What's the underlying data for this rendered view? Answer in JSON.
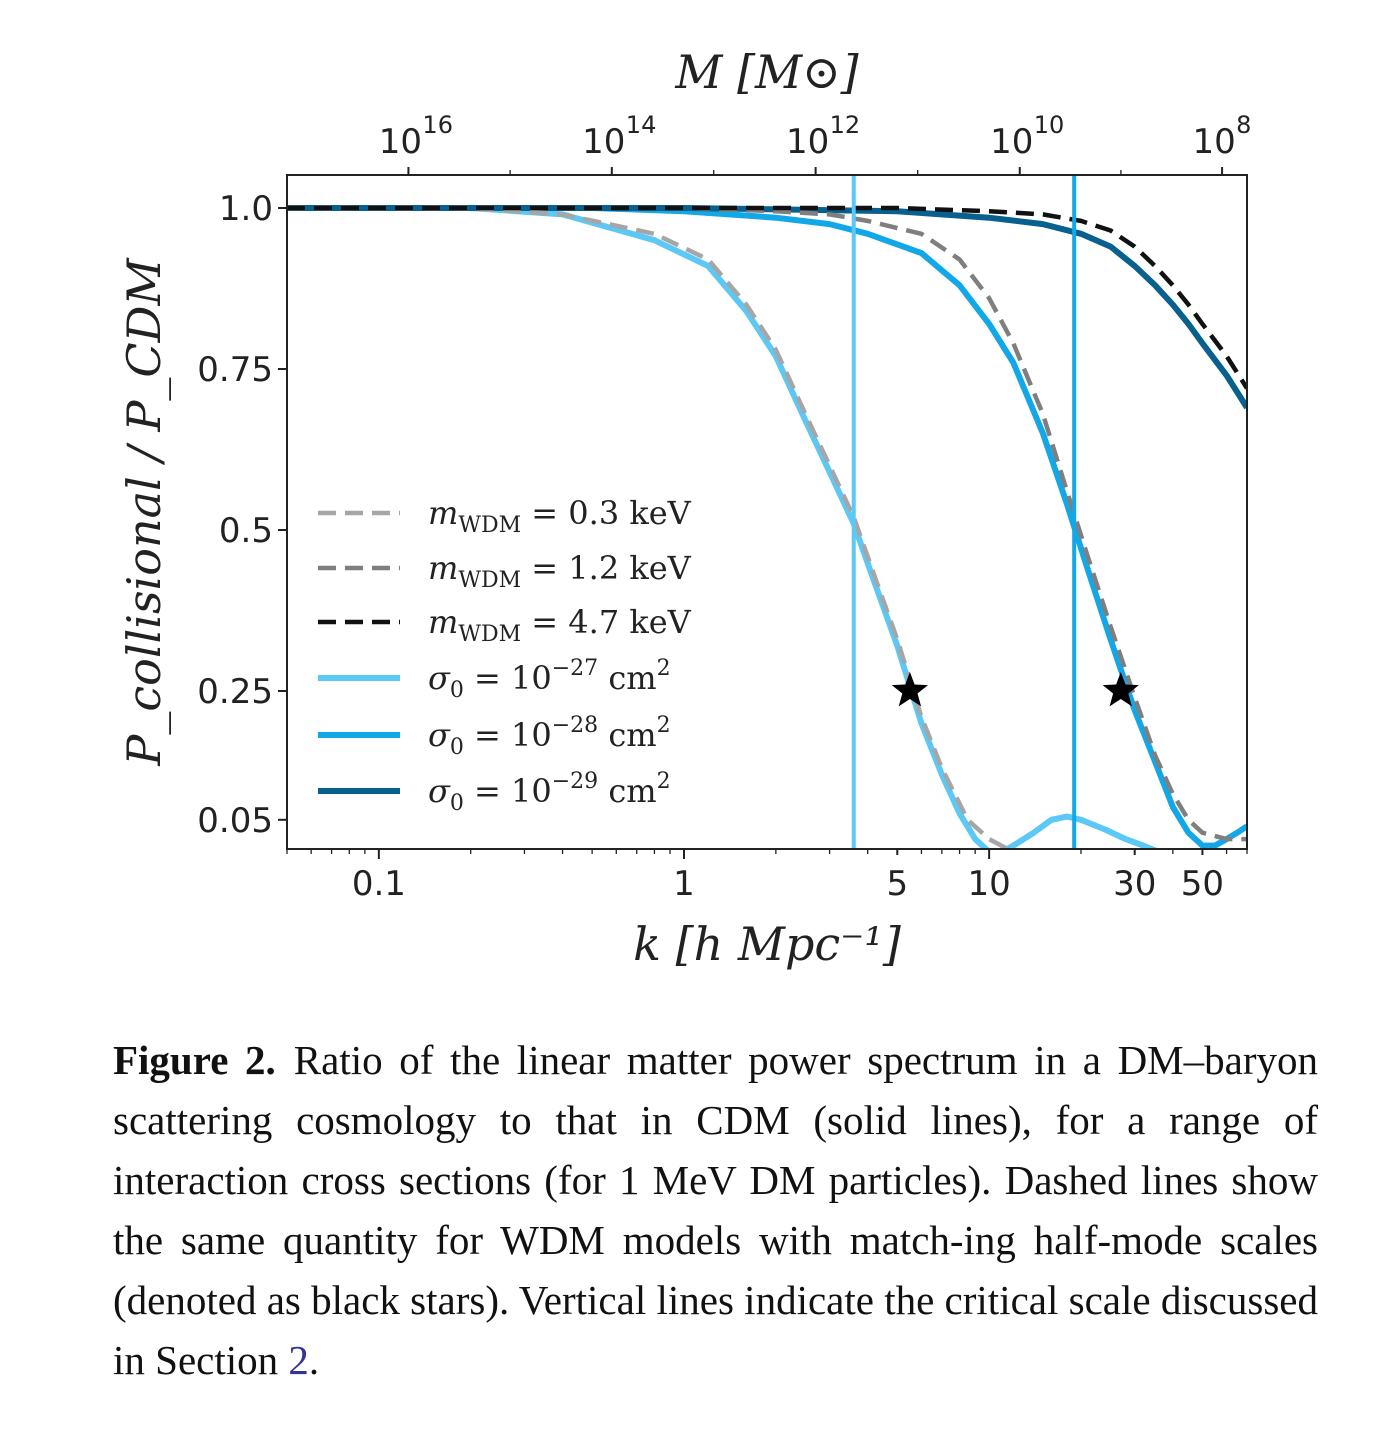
{
  "chart_data": {
    "type": "line",
    "xlabel": "k [h Mpc⁻¹]",
    "ylabel": "P_collisional / P_CDM",
    "xscale": "log",
    "xlim": [
      0.05,
      70
    ],
    "ylim": [
      0.0,
      1.05
    ],
    "x_ticks": [
      0.1,
      1,
      5,
      10,
      30,
      50
    ],
    "x_tick_labels": [
      "0.1",
      "1",
      "5",
      "10",
      "30",
      "50"
    ],
    "y_ticks": [
      1.0,
      0.75,
      0.5,
      0.25,
      0.05
    ],
    "y_tick_labels": [
      "1.0",
      "0.75",
      "0.5",
      "0.25",
      "0.05"
    ],
    "top_axis": {
      "label": "M [M⊙]",
      "ticks": [
        "10^16",
        "10^14",
        "10^12",
        "10^10",
        "10^8"
      ],
      "tick_positions_k": [
        0.125,
        0.58,
        2.7,
        12.6,
        58
      ]
    },
    "legend_placement": "center-left",
    "grid": false,
    "vertical_lines": [
      {
        "k": 3.6,
        "color": "#5bc8f5"
      },
      {
        "k": 19.0,
        "color": "#12a8e8"
      }
    ],
    "stars": [
      {
        "k": 5.5,
        "y": 0.25
      },
      {
        "k": 27.0,
        "y": 0.25
      }
    ],
    "series": [
      {
        "name": "m_WDM = 0.3 keV",
        "style": "dashed",
        "color": "#a6a6a6",
        "x": [
          0.05,
          0.1,
          0.2,
          0.4,
          0.8,
          1.2,
          1.6,
          2.0,
          2.5,
          3.0,
          3.6,
          4.2,
          5.0,
          6.0,
          7.0,
          8.5,
          10,
          12,
          15,
          20,
          30,
          50,
          70
        ],
        "y": [
          1.0,
          1.0,
          1.0,
          0.99,
          0.96,
          0.92,
          0.85,
          0.78,
          0.68,
          0.6,
          0.52,
          0.43,
          0.33,
          0.21,
          0.13,
          0.05,
          0.02,
          0.0,
          0.0,
          0.0,
          0.0,
          0.0,
          0.0
        ]
      },
      {
        "name": "m_WDM = 1.2 keV",
        "style": "dashed",
        "color": "#7f7f7f",
        "x": [
          0.05,
          0.5,
          1,
          2,
          3,
          4,
          6,
          8,
          10,
          12,
          15,
          18,
          21,
          25,
          30,
          35,
          40,
          45,
          50,
          60,
          70
        ],
        "y": [
          1.0,
          1.0,
          1.0,
          0.995,
          0.99,
          0.98,
          0.96,
          0.92,
          0.86,
          0.79,
          0.68,
          0.56,
          0.46,
          0.35,
          0.24,
          0.15,
          0.09,
          0.05,
          0.03,
          0.02,
          0.02
        ]
      },
      {
        "name": "m_WDM = 4.7 keV",
        "style": "dashed",
        "color": "#111111",
        "x": [
          0.05,
          1,
          5,
          10,
          15,
          20,
          25,
          30,
          35,
          40,
          45,
          50,
          60,
          70
        ],
        "y": [
          1.0,
          1.0,
          1.0,
          0.995,
          0.99,
          0.98,
          0.965,
          0.94,
          0.91,
          0.88,
          0.85,
          0.82,
          0.77,
          0.72
        ]
      },
      {
        "name": "σ₀ = 10⁻²⁷ cm²",
        "style": "solid",
        "color": "#5bc8f5",
        "x": [
          0.05,
          0.1,
          0.2,
          0.4,
          0.8,
          1.2,
          1.6,
          2.0,
          2.5,
          3.0,
          3.6,
          4.2,
          5.0,
          6.0,
          7.0,
          8.0,
          9.0,
          10,
          11,
          12,
          14,
          16,
          18,
          20,
          24,
          28,
          32,
          36,
          42,
          50,
          60,
          70
        ],
        "y": [
          1.0,
          1.0,
          1.0,
          0.99,
          0.95,
          0.91,
          0.84,
          0.77,
          0.67,
          0.59,
          0.51,
          0.42,
          0.32,
          0.2,
          0.12,
          0.06,
          0.02,
          0.0,
          0.0,
          0.01,
          0.03,
          0.05,
          0.055,
          0.05,
          0.035,
          0.02,
          0.01,
          0.0,
          0.0,
          0.0,
          0.0,
          0.0
        ]
      },
      {
        "name": "σ₀ = 10⁻²⁸ cm²",
        "style": "solid",
        "color": "#12a8e8",
        "x": [
          0.05,
          0.5,
          1,
          2,
          3,
          4,
          6,
          8,
          10,
          12,
          15,
          18,
          21,
          25,
          30,
          35,
          40,
          45,
          50,
          55,
          60,
          65,
          70
        ],
        "y": [
          1.0,
          1.0,
          0.995,
          0.985,
          0.975,
          0.96,
          0.93,
          0.88,
          0.82,
          0.76,
          0.65,
          0.54,
          0.44,
          0.33,
          0.22,
          0.14,
          0.07,
          0.03,
          0.01,
          0.01,
          0.02,
          0.03,
          0.04
        ]
      },
      {
        "name": "σ₀ = 10⁻²⁹ cm²",
        "style": "solid",
        "color": "#07608e",
        "x": [
          0.05,
          1,
          5,
          10,
          15,
          20,
          25,
          30,
          35,
          40,
          45,
          50,
          60,
          70
        ],
        "y": [
          1.0,
          1.0,
          0.995,
          0.985,
          0.975,
          0.96,
          0.94,
          0.91,
          0.88,
          0.85,
          0.82,
          0.79,
          0.74,
          0.69
        ]
      }
    ]
  },
  "legend": {
    "entries": [
      {
        "sym": "m",
        "sub": "WDM",
        "rest": " = 0.3 keV",
        "sup": ""
      },
      {
        "sym": "m",
        "sub": "WDM",
        "rest": " = 1.2 keV",
        "sup": ""
      },
      {
        "sym": "m",
        "sub": "WDM",
        "rest": " = 4.7 keV",
        "sup": ""
      },
      {
        "sym": "σ",
        "sub": "0",
        "rest": " = 10",
        "sup": "−27",
        "unit": " cm",
        "unitsup": "2"
      },
      {
        "sym": "σ",
        "sub": "0",
        "rest": " = 10",
        "sup": "−28",
        "unit": " cm",
        "unitsup": "2"
      },
      {
        "sym": "σ",
        "sub": "0",
        "rest": " = 10",
        "sup": "−29",
        "unit": " cm",
        "unitsup": "2"
      }
    ]
  },
  "caption": {
    "label": "Figure 2.",
    "text": "Ratio of the linear matter power spectrum in a DM–baryon scattering cosmology to that in CDM (solid lines), for a range of interaction cross sections (for 1 MeV DM particles). Dashed lines show the same quantity for WDM models with match-ing half-mode scales (denoted as black stars). Vertical lines indicate the critical scale discussed in Section",
    "link": "2",
    "end": "."
  },
  "colors": {
    "wdm_03": "#a6a6a6",
    "wdm_12": "#7f7f7f",
    "wdm_47": "#111111",
    "sigma_27": "#5bc8f5",
    "sigma_28": "#12a8e8",
    "sigma_29": "#07608e"
  }
}
